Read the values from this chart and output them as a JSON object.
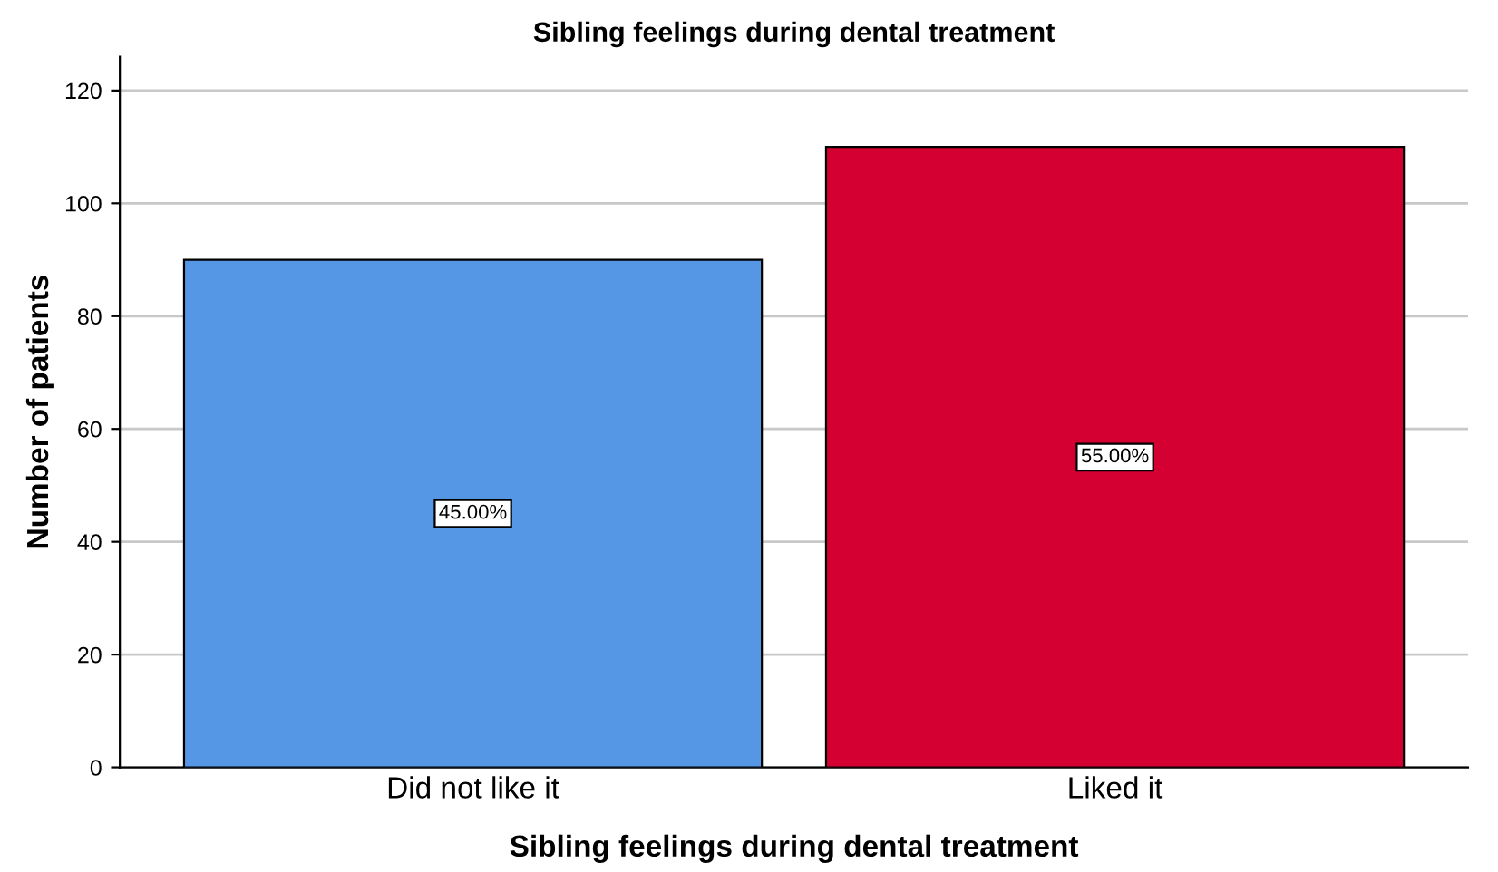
{
  "chart_data": {
    "type": "bar",
    "title": "Sibling feelings during dental treatment",
    "xlabel": "Sibling feelings during dental treatment",
    "ylabel": "Number of patients",
    "categories": [
      "Did not like it",
      "Liked it"
    ],
    "values": [
      90,
      110
    ],
    "colors": [
      "#5697e5",
      "#d50032"
    ],
    "annotations": [
      {
        "text": "45.00%",
        "x": "Did not like it",
        "y": 45
      },
      {
        "text": "55.00%",
        "x": "Liked it",
        "y": 55
      }
    ],
    "ylim": [
      0,
      126
    ],
    "yticks": [
      0,
      20,
      40,
      60,
      80,
      100,
      120
    ],
    "grid": "y",
    "legend": false
  }
}
